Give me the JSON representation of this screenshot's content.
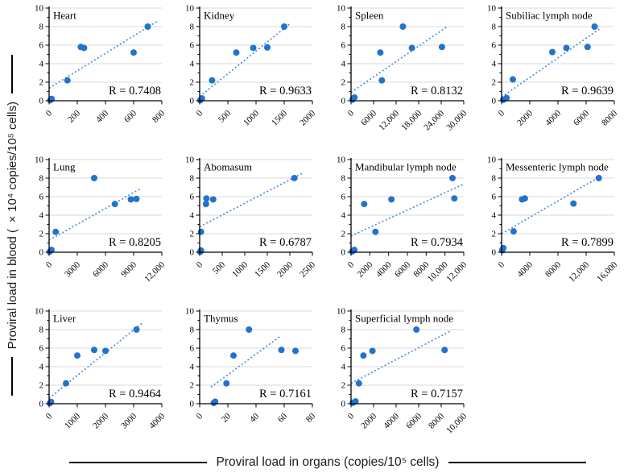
{
  "figure": {
    "x_axis_label": "Proviral load in organs (copies/10⁵ cells)",
    "y_axis_label": "Proviral load in blood ( ×10⁴ copies/10⁵ cells)"
  },
  "colors": {
    "marker": "#2273cd",
    "trendline": "#4a90dd",
    "gridline": "#d9d9d9",
    "axis": "#000000",
    "background": "#ffffff"
  },
  "chart_data": [
    {
      "type": "scatter",
      "title": "Heart",
      "r_label": "R = 0.7408",
      "r_value": 0.7408,
      "xlim": [
        0,
        800
      ],
      "ylim": [
        0,
        10
      ],
      "x_tick_values": [
        0,
        200,
        400,
        600,
        800
      ],
      "x_tick_labels": [
        "0",
        "200",
        "400",
        "600",
        "800"
      ],
      "y_ticks": [
        0,
        2,
        4,
        6,
        8,
        10
      ],
      "points": [
        [
          8,
          0.05
        ],
        [
          18,
          0.2
        ],
        [
          130,
          2.2
        ],
        [
          225,
          5.8
        ],
        [
          248,
          5.7
        ],
        [
          600,
          5.2
        ],
        [
          700,
          8
        ]
      ],
      "trendline": {
        "from": [
          0,
          1.35
        ],
        "to": [
          765,
          8.55
        ]
      }
    },
    {
      "type": "scatter",
      "title": "Kidney",
      "r_label": "R = 0.9633",
      "r_value": 0.9633,
      "xlim": [
        0,
        2000
      ],
      "ylim": [
        0,
        10
      ],
      "x_tick_values": [
        0,
        500,
        1000,
        1500,
        2000
      ],
      "x_tick_labels": [
        "0",
        "500",
        "1000",
        "1500",
        "2000"
      ],
      "y_ticks": [
        0,
        2,
        4,
        6,
        8,
        10
      ],
      "points": [
        [
          10,
          0.05
        ],
        [
          40,
          0.25
        ],
        [
          220,
          2.2
        ],
        [
          650,
          5.2
        ],
        [
          950,
          5.7
        ],
        [
          1200,
          5.75
        ],
        [
          1500,
          8
        ]
      ],
      "trendline": {
        "from": [
          0,
          0.45
        ],
        "to": [
          1620,
          8.4
        ]
      }
    },
    {
      "type": "scatter",
      "title": "Spleen",
      "r_label": "R = 0.8132",
      "r_value": 0.8132,
      "xlim": [
        0,
        30000
      ],
      "ylim": [
        0,
        10
      ],
      "x_tick_values": [
        0,
        6000,
        12000,
        18000,
        24000,
        30000
      ],
      "x_tick_labels": [
        "0",
        "6000",
        "12,000",
        "18,000",
        "24,000",
        "30,000"
      ],
      "y_ticks": [
        0,
        2,
        4,
        6,
        8,
        10
      ],
      "points": [
        [
          400,
          0.12
        ],
        [
          900,
          0.35
        ],
        [
          8200,
          2.2
        ],
        [
          7800,
          5.2
        ],
        [
          13800,
          8
        ],
        [
          16200,
          5.7
        ],
        [
          24200,
          5.8
        ]
      ],
      "trendline": {
        "from": [
          0,
          0.9
        ],
        "to": [
          25600,
          8.0
        ]
      }
    },
    {
      "type": "scatter",
      "title": "Subiliac lymph node",
      "r_label": "R = 0.9639",
      "r_value": 0.9639,
      "xlim": [
        0,
        8000
      ],
      "ylim": [
        0,
        10
      ],
      "x_tick_values": [
        0,
        2000,
        4000,
        6000,
        8000
      ],
      "x_tick_labels": [
        "0",
        "2000",
        "4000",
        "6000",
        "8000"
      ],
      "y_ticks": [
        0,
        2,
        4,
        6,
        8,
        10
      ],
      "points": [
        [
          120,
          0.1
        ],
        [
          350,
          0.3
        ],
        [
          800,
          2.3
        ],
        [
          3600,
          5.25
        ],
        [
          4600,
          5.7
        ],
        [
          6100,
          5.8
        ],
        [
          6600,
          8
        ]
      ],
      "trendline": {
        "from": [
          0,
          0.4
        ],
        "to": [
          7000,
          7.8
        ]
      }
    },
    {
      "type": "scatter",
      "title": "Lung",
      "r_label": "R = 0.8205",
      "r_value": 0.8205,
      "xlim": [
        0,
        12000
      ],
      "ylim": [
        0,
        10
      ],
      "x_tick_values": [
        0,
        3000,
        6000,
        9000,
        12000
      ],
      "x_tick_labels": [
        "0",
        "3000",
        "6000",
        "9000",
        "12,000"
      ],
      "y_ticks": [
        0,
        2,
        4,
        6,
        8,
        10
      ],
      "points": [
        [
          60,
          0.05
        ],
        [
          250,
          0.25
        ],
        [
          700,
          2.2
        ],
        [
          4800,
          8
        ],
        [
          7000,
          5.2
        ],
        [
          8700,
          5.7
        ],
        [
          9300,
          5.75
        ]
      ],
      "trendline": {
        "from": [
          0,
          1.3
        ],
        "to": [
          9800,
          6.9
        ]
      }
    },
    {
      "type": "scatter",
      "title": "Abomasum",
      "r_label": "R = 0.6787",
      "r_value": 0.6787,
      "xlim": [
        0,
        2500
      ],
      "ylim": [
        0,
        10
      ],
      "x_tick_values": [
        0,
        500,
        1000,
        1500,
        2000,
        2500
      ],
      "x_tick_labels": [
        "0",
        "500",
        "1000",
        "1500",
        "2000",
        "2500"
      ],
      "y_ticks": [
        0,
        2,
        4,
        6,
        8,
        10
      ],
      "points": [
        [
          12,
          0.05
        ],
        [
          28,
          0.18
        ],
        [
          30,
          2.2
        ],
        [
          150,
          5.8
        ],
        [
          140,
          5.2
        ],
        [
          300,
          5.7
        ],
        [
          2100,
          8
        ]
      ],
      "trendline": {
        "from": [
          0,
          2.75
        ],
        "to": [
          2270,
          8.5
        ]
      }
    },
    {
      "type": "scatter",
      "title": "Mandibular lymph node",
      "r_label": "R = 0.7934",
      "r_value": 0.7934,
      "xlim": [
        0,
        12000
      ],
      "ylim": [
        0,
        10
      ],
      "x_tick_values": [
        0,
        2000,
        4000,
        6000,
        8000,
        10000,
        12000
      ],
      "x_tick_labels": [
        "0",
        "2000",
        "4000",
        "6000",
        "8000",
        "10,000",
        "12,000"
      ],
      "y_ticks": [
        0,
        2,
        4,
        6,
        8,
        10
      ],
      "points": [
        [
          120,
          0.08
        ],
        [
          350,
          0.25
        ],
        [
          1400,
          5.2
        ],
        [
          2600,
          2.2
        ],
        [
          4300,
          5.7
        ],
        [
          10800,
          8
        ],
        [
          11000,
          5.8
        ]
      ],
      "trendline": {
        "from": [
          0,
          1.75
        ],
        "to": [
          12000,
          7.35
        ]
      }
    },
    {
      "type": "scatter",
      "title": "Messenteric lymph node",
      "r_label": "R = 0.7899",
      "r_value": 0.7899,
      "xlim": [
        0,
        16000
      ],
      "ylim": [
        0,
        10
      ],
      "x_tick_values": [
        0,
        4000,
        8000,
        12000,
        16000
      ],
      "x_tick_labels": [
        "0",
        "4000",
        "8000",
        "12,000",
        "16,000"
      ],
      "y_ticks": [
        0,
        2,
        4,
        6,
        8,
        10
      ],
      "points": [
        [
          80,
          0.2
        ],
        [
          250,
          0.45
        ],
        [
          1700,
          2.25
        ],
        [
          2900,
          5.7
        ],
        [
          3300,
          5.8
        ],
        [
          10200,
          5.25
        ],
        [
          13800,
          8
        ]
      ],
      "trendline": {
        "from": [
          0,
          2.0
        ],
        "to": [
          14400,
          8.35
        ]
      }
    },
    {
      "type": "scatter",
      "title": "Liver",
      "r_label": "R = 0.9464",
      "r_value": 0.9464,
      "xlim": [
        0,
        4000
      ],
      "ylim": [
        0,
        10
      ],
      "x_tick_values": [
        0,
        1000,
        2000,
        3000,
        4000
      ],
      "x_tick_labels": [
        "0",
        "1000",
        "2000",
        "3000",
        "4000"
      ],
      "y_ticks": [
        0,
        2,
        4,
        6,
        8,
        10
      ],
      "points": [
        [
          25,
          0.05
        ],
        [
          70,
          0.2
        ],
        [
          600,
          2.2
        ],
        [
          1000,
          5.2
        ],
        [
          1600,
          5.8
        ],
        [
          2000,
          5.7
        ],
        [
          3100,
          8
        ]
      ],
      "trendline": {
        "from": [
          0,
          0.6
        ],
        "to": [
          3300,
          8.7
        ]
      }
    },
    {
      "type": "scatter",
      "title": "Thymus",
      "r_label": "R = 0.7161",
      "r_value": 0.7161,
      "xlim": [
        0,
        80
      ],
      "ylim": [
        0,
        10
      ],
      "x_tick_values": [
        0,
        20,
        40,
        60,
        80
      ],
      "x_tick_labels": [
        "0",
        "20",
        "40",
        "60",
        "80"
      ],
      "y_ticks": [
        0,
        2,
        4,
        6,
        8,
        10
      ],
      "points": [
        [
          10,
          0.08
        ],
        [
          11,
          0.22
        ],
        [
          19,
          2.2
        ],
        [
          24,
          5.2
        ],
        [
          35,
          8
        ],
        [
          58,
          5.8
        ],
        [
          68,
          5.7
        ]
      ],
      "trendline": {
        "from": [
          8,
          1.8
        ],
        "to": [
          57,
          7.25
        ]
      }
    },
    {
      "type": "scatter",
      "title": "Superficial lymph node",
      "r_label": "R = 0.7157",
      "r_value": 0.7157,
      "xlim": [
        0,
        10000
      ],
      "ylim": [
        0,
        10
      ],
      "x_tick_values": [
        0,
        2000,
        4000,
        6000,
        8000,
        10000
      ],
      "x_tick_labels": [
        "0",
        "2000",
        "4000",
        "6000",
        "8000",
        "10,000"
      ],
      "y_ticks": [
        0,
        2,
        4,
        6,
        8,
        10
      ],
      "points": [
        [
          150,
          0.1
        ],
        [
          400,
          0.25
        ],
        [
          700,
          2.2
        ],
        [
          1100,
          5.2
        ],
        [
          1900,
          5.7
        ],
        [
          5800,
          8
        ],
        [
          8300,
          5.8
        ]
      ],
      "trendline": {
        "from": [
          0,
          2.2
        ],
        "to": [
          8900,
          7.9
        ]
      }
    }
  ]
}
